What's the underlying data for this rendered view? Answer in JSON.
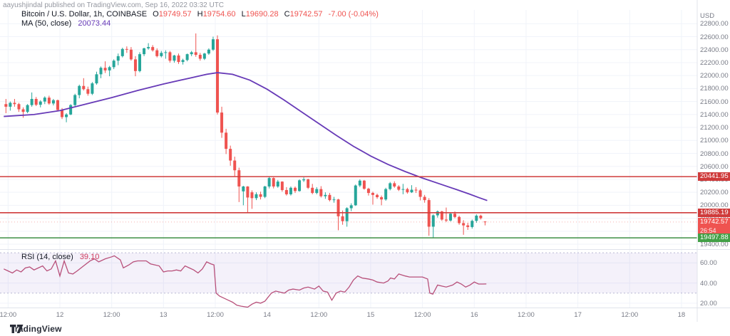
{
  "watermark": "aayushjindal published on TradingView.com, Sep 16, 2022 03:32 UTC",
  "legend": {
    "symbol": "Bitcoin / U.S. Dollar, 1h, COINBASE",
    "ohlc": [
      {
        "k": "O",
        "v": "19749.57"
      },
      {
        "k": "H",
        "v": "19754.60"
      },
      {
        "k": "L",
        "v": "19690.28"
      },
      {
        "k": "C",
        "v": "19742.57"
      }
    ],
    "change": "-7.00 (-0.04%)",
    "ma_label": "MA (50, close)",
    "ma_value": "20073.44"
  },
  "price_axis": {
    "unit": "USD",
    "labels": [
      "22800.00",
      "22600.00",
      "22400.00",
      "22200.00",
      "22000.00",
      "21800.00",
      "21600.00",
      "21400.00",
      "21200.00",
      "21000.00",
      "20800.00",
      "20600.00",
      "20400.00",
      "20200.00",
      "20000.00",
      "19800.00",
      "19600.00",
      "19400.00"
    ]
  },
  "badges": [
    {
      "label": "20441.95",
      "price": 20441.95,
      "bg": "#cf3b3b"
    },
    {
      "label": "19885.19",
      "price": 19885.19,
      "bg": "#cf3b3b"
    },
    {
      "label": "19742.57",
      "price": 19742.57,
      "bg": "#ef5350",
      "countdown": "26:54",
      "type": "current"
    },
    {
      "label": "19497.88",
      "price": 19497.88,
      "bg": "#43a047"
    }
  ],
  "rsi_pane": {
    "label": "RSI (14, close)",
    "value": "39.10",
    "axis_labels": [
      "60.00",
      "40.00",
      "20.00"
    ],
    "axis_values": [
      60,
      40,
      20
    ],
    "overbought": 70,
    "oversold": 30
  },
  "time_axis": {
    "ticks": [
      {
        "t": -12,
        "label": "12:00"
      },
      {
        "t": 0,
        "label": "12"
      },
      {
        "t": 12,
        "label": "12:00"
      },
      {
        "t": 24,
        "label": "13"
      },
      {
        "t": 36,
        "label": "12:00"
      },
      {
        "t": 48,
        "label": "14"
      },
      {
        "t": 60,
        "label": "12:00"
      },
      {
        "t": 72,
        "label": "15"
      },
      {
        "t": 84,
        "label": "12:00"
      },
      {
        "t": 96,
        "label": "16"
      },
      {
        "t": 108,
        "label": "12:00"
      },
      {
        "t": 120,
        "label": "17"
      },
      {
        "t": 132,
        "label": "12:00"
      },
      {
        "t": 144,
        "label": "18"
      }
    ]
  },
  "footer": {
    "brand": "TradingView"
  },
  "colors": {
    "up": "#26a69a",
    "down": "#ef5350",
    "ma": "#673ab7",
    "rsi_line": "#b8507a",
    "rsi_band": "rgba(103,58,183,0.07)",
    "band_edge": "#a9a9c9",
    "grid": "#f0f3fa",
    "axis_text": "#787b86",
    "level_red": "#cf3b3b",
    "level_green": "#3d8f44",
    "pane_border": "#e0e3eb"
  },
  "chart_data": {
    "type": "candlestick",
    "title": "Bitcoin / U.S. Dollar",
    "exchange": "COINBASE",
    "interval": "1h",
    "start_time": "2022-09-11 11:00 UTC",
    "end_time": "2022-09-16 03:00 UTC",
    "last": {
      "open": 19749.57,
      "high": 19754.6,
      "low": 19690.28,
      "close": 19742.57,
      "change": -7.0,
      "change_pct": -0.04
    },
    "ma50_last": 20073.44,
    "rsi_last": 39.1,
    "y_axis_range": [
      19340,
      22950
    ],
    "levels": [
      {
        "price": 20441.95,
        "color": "#cf3b3b",
        "role": "resistance"
      },
      {
        "price": 19885.19,
        "color": "#cf3b3b",
        "role": "resistance"
      },
      {
        "price": 19497.88,
        "color": "#3d8f44",
        "role": "support"
      }
    ],
    "candles_ohlc": [
      [
        21560,
        21640,
        21420,
        21520
      ],
      [
        21520,
        21600,
        21460,
        21580
      ],
      [
        21580,
        21640,
        21520,
        21560
      ],
      [
        21560,
        21580,
        21440,
        21480
      ],
      [
        21480,
        21510,
        21350,
        21440
      ],
      [
        21440,
        21560,
        21420,
        21545
      ],
      [
        21545,
        21740,
        21520,
        21640
      ],
      [
        21640,
        21670,
        21530,
        21550
      ],
      [
        21550,
        21620,
        21510,
        21600
      ],
      [
        21600,
        21680,
        21560,
        21660
      ],
      [
        21660,
        21690,
        21550,
        21570
      ],
      [
        21570,
        21640,
        21540,
        21620
      ],
      [
        21620,
        21630,
        21450,
        21470
      ],
      [
        21470,
        21500,
        21330,
        21360
      ],
      [
        21360,
        21420,
        21280,
        21400
      ],
      [
        21400,
        21560,
        21390,
        21545
      ],
      [
        21545,
        21720,
        21530,
        21700
      ],
      [
        21700,
        21860,
        21650,
        21840
      ],
      [
        21840,
        21960,
        21770,
        21790
      ],
      [
        21790,
        21830,
        21690,
        21720
      ],
      [
        21720,
        21900,
        21700,
        21880
      ],
      [
        21880,
        22060,
        21860,
        22020
      ],
      [
        22020,
        22140,
        21960,
        22120
      ],
      [
        22120,
        22220,
        22040,
        22080
      ],
      [
        22080,
        22150,
        21990,
        22130
      ],
      [
        22130,
        22250,
        22100,
        22230
      ],
      [
        22230,
        22340,
        22160,
        22300
      ],
      [
        22300,
        22430,
        22280,
        22410
      ],
      [
        22410,
        22450,
        22350,
        22400
      ],
      [
        22400,
        22440,
        22230,
        22250
      ],
      [
        22250,
        22300,
        21990,
        22070
      ],
      [
        22070,
        22360,
        22050,
        22330
      ],
      [
        22330,
        22430,
        22300,
        22420
      ],
      [
        22420,
        22500,
        22400,
        22440
      ],
      [
        22440,
        22470,
        22370,
        22390
      ],
      [
        22390,
        22420,
        22280,
        22300
      ],
      [
        22300,
        22380,
        22280,
        22350
      ],
      [
        22350,
        22390,
        22260,
        22360
      ],
      [
        22360,
        22380,
        22200,
        22230
      ],
      [
        22230,
        22320,
        22200,
        22310
      ],
      [
        22310,
        22340,
        22180,
        22210
      ],
      [
        22210,
        22260,
        22170,
        22240
      ],
      [
        22240,
        22340,
        22220,
        22330
      ],
      [
        22330,
        22380,
        22300,
        22360
      ],
      [
        22360,
        22650,
        22290,
        22320
      ],
      [
        22320,
        22350,
        22230,
        22260
      ],
      [
        22260,
        22350,
        22240,
        22340
      ],
      [
        22340,
        22420,
        22320,
        22400
      ],
      [
        22400,
        22600,
        22380,
        22560
      ],
      [
        22560,
        22620,
        21400,
        21430
      ],
      [
        21430,
        21520,
        21040,
        21120
      ],
      [
        21120,
        21180,
        20790,
        20870
      ],
      [
        20870,
        20920,
        20610,
        20690
      ],
      [
        20690,
        20750,
        20450,
        20540
      ],
      [
        20540,
        20580,
        20050,
        20290
      ],
      [
        20215,
        20300,
        20000,
        20290
      ],
      [
        20290,
        20295,
        19885,
        20120
      ],
      [
        20200,
        20230,
        19945,
        20110
      ],
      [
        20110,
        20200,
        20080,
        20170
      ],
      [
        20170,
        20210,
        20090,
        20130
      ],
      [
        20130,
        20300,
        20110,
        20290
      ],
      [
        20290,
        20441,
        20260,
        20420
      ],
      [
        20420,
        20430,
        20260,
        20290
      ],
      [
        20290,
        20390,
        20270,
        20365
      ],
      [
        20365,
        20370,
        20210,
        20235
      ],
      [
        20235,
        20280,
        20150,
        20170
      ],
      [
        20170,
        20290,
        20150,
        20270
      ],
      [
        20270,
        20290,
        20190,
        20220
      ],
      [
        20220,
        20400,
        20210,
        20385
      ],
      [
        20385,
        20430,
        20360,
        20400
      ],
      [
        20400,
        20410,
        20250,
        20270
      ],
      [
        20270,
        20330,
        20170,
        20190
      ],
      [
        20190,
        20280,
        20170,
        20250
      ],
      [
        20250,
        20295,
        20120,
        20140
      ],
      [
        20140,
        20200,
        20100,
        20160
      ],
      [
        20160,
        20190,
        20060,
        20080
      ],
      [
        20080,
        20130,
        20040,
        20090
      ],
      [
        20090,
        20100,
        19615,
        19830
      ],
      [
        19830,
        19920,
        19700,
        19755
      ],
      [
        19755,
        19970,
        19670,
        19955
      ],
      [
        19955,
        20030,
        19910,
        20000
      ],
      [
        20000,
        20320,
        19990,
        20305
      ],
      [
        20305,
        20400,
        20280,
        20380
      ],
      [
        20380,
        20390,
        20240,
        20255
      ],
      [
        20255,
        20270,
        20150,
        20190
      ],
      [
        20190,
        20210,
        20010,
        20160
      ],
      [
        20160,
        20180,
        20100,
        20125
      ],
      [
        20125,
        20150,
        20000,
        20090
      ],
      [
        20090,
        20270,
        20070,
        20250
      ],
      [
        20250,
        20360,
        20230,
        20340
      ],
      [
        20340,
        20370,
        20270,
        20290
      ],
      [
        20290,
        20310,
        20220,
        20240
      ],
      [
        20240,
        20330,
        20170,
        20250
      ],
      [
        20250,
        20270,
        20180,
        20200
      ],
      [
        20200,
        20310,
        20190,
        20240
      ],
      [
        20240,
        20280,
        20190,
        20230
      ],
      [
        20230,
        20250,
        20075,
        20130
      ],
      [
        20130,
        20160,
        20040,
        20080
      ],
      [
        20080,
        20110,
        19530,
        19670
      ],
      [
        19670,
        19860,
        19500,
        19845
      ],
      [
        19845,
        19920,
        19810,
        19905
      ],
      [
        19905,
        19915,
        19760,
        19780
      ],
      [
        19780,
        19965,
        19740,
        19765
      ],
      [
        19765,
        19890,
        19750,
        19870
      ],
      [
        19870,
        19905,
        19800,
        19820
      ],
      [
        19820,
        19840,
        19700,
        19725
      ],
      [
        19725,
        19770,
        19545,
        19690
      ],
      [
        19690,
        19730,
        19620,
        19665
      ],
      [
        19665,
        19780,
        19640,
        19760
      ],
      [
        19760,
        19860,
        19730,
        19840
      ],
      [
        19840,
        19855,
        19780,
        19800
      ],
      [
        19749.57,
        19754.6,
        19690.28,
        19742.57
      ]
    ],
    "ma50": [
      [
        -13,
        21370
      ],
      [
        -6,
        21400
      ],
      [
        0,
        21460
      ],
      [
        6,
        21560
      ],
      [
        12,
        21660
      ],
      [
        18,
        21770
      ],
      [
        24,
        21870
      ],
      [
        30,
        21960
      ],
      [
        34,
        22020
      ],
      [
        36.5,
        22045
      ],
      [
        40,
        22020
      ],
      [
        44,
        21930
      ],
      [
        48,
        21790
      ],
      [
        52,
        21620
      ],
      [
        56,
        21440
      ],
      [
        60,
        21260
      ],
      [
        64,
        21080
      ],
      [
        68,
        20910
      ],
      [
        72,
        20760
      ],
      [
        76,
        20630
      ],
      [
        80,
        20520
      ],
      [
        84,
        20420
      ],
      [
        88,
        20330
      ],
      [
        92,
        20240
      ],
      [
        95,
        20170
      ],
      [
        97,
        20120
      ],
      [
        99,
        20073.44
      ]
    ],
    "rsi": [
      [
        -13,
        54
      ],
      [
        -12,
        52
      ],
      [
        -11,
        50
      ],
      [
        -10,
        53
      ],
      [
        -9,
        51
      ],
      [
        -8,
        55
      ],
      [
        -7,
        56
      ],
      [
        -6,
        53
      ],
      [
        -5,
        55
      ],
      [
        -4,
        57
      ],
      [
        -3,
        52
      ],
      [
        -2,
        54
      ],
      [
        -1,
        62
      ],
      [
        0,
        47
      ],
      [
        1,
        62
      ],
      [
        2,
        50
      ],
      [
        3,
        49
      ],
      [
        4,
        52
      ],
      [
        5.5,
        57
      ],
      [
        7,
        62
      ],
      [
        8,
        64
      ],
      [
        9,
        61
      ],
      [
        10.5,
        64
      ],
      [
        12,
        66
      ],
      [
        12.6,
        67
      ],
      [
        14,
        63
      ],
      [
        14.7,
        55
      ],
      [
        16,
        58
      ],
      [
        17,
        61
      ],
      [
        18,
        62
      ],
      [
        20,
        62
      ],
      [
        21,
        59
      ],
      [
        22,
        58
      ],
      [
        23,
        57
      ],
      [
        24,
        51
      ],
      [
        25,
        52
      ],
      [
        26,
        52
      ],
      [
        27,
        53
      ],
      [
        28,
        52
      ],
      [
        29,
        57
      ],
      [
        30,
        55
      ],
      [
        31,
        53
      ],
      [
        32,
        50
      ],
      [
        33,
        54
      ],
      [
        34,
        61
      ],
      [
        35,
        59
      ],
      [
        35.7,
        58
      ],
      [
        36.2,
        30
      ],
      [
        37,
        27
      ],
      [
        38,
        25
      ],
      [
        39,
        23
      ],
      [
        40,
        21
      ],
      [
        41,
        18
      ],
      [
        42,
        17
      ],
      [
        43.5,
        16
      ],
      [
        44.5,
        19
      ],
      [
        45.5,
        21
      ],
      [
        46.5,
        20
      ],
      [
        47.5,
        22
      ],
      [
        49,
        30
      ],
      [
        50,
        32
      ],
      [
        51,
        31
      ],
      [
        52,
        30
      ],
      [
        53,
        33
      ],
      [
        54,
        34
      ],
      [
        55.5,
        33
      ],
      [
        56.5,
        35
      ],
      [
        57.5,
        36
      ],
      [
        59,
        34
      ],
      [
        60,
        37
      ],
      [
        61,
        32
      ],
      [
        62,
        31
      ],
      [
        63,
        23
      ],
      [
        64,
        30
      ],
      [
        65,
        32
      ],
      [
        66,
        31
      ],
      [
        67,
        36
      ],
      [
        68,
        43
      ],
      [
        69,
        47
      ],
      [
        70,
        45
      ],
      [
        71.5,
        44
      ],
      [
        72.5,
        43
      ],
      [
        73.5,
        41
      ],
      [
        75,
        40
      ],
      [
        76,
        42
      ],
      [
        76.6,
        45
      ],
      [
        77.5,
        44
      ],
      [
        78.5,
        49
      ],
      [
        80,
        47
      ],
      [
        81,
        46
      ],
      [
        82,
        46
      ],
      [
        83,
        46
      ],
      [
        84,
        46
      ],
      [
        85.2,
        44
      ],
      [
        85.7,
        30
      ],
      [
        86.4,
        29
      ],
      [
        87.5,
        38
      ],
      [
        88.5,
        37
      ],
      [
        89.5,
        36
      ],
      [
        91,
        38
      ],
      [
        92,
        41
      ],
      [
        93,
        39
      ],
      [
        94,
        36
      ],
      [
        95,
        38
      ],
      [
        96,
        41
      ],
      [
        97,
        39
      ],
      [
        98,
        39
      ],
      [
        98.8,
        39.1
      ]
    ]
  }
}
